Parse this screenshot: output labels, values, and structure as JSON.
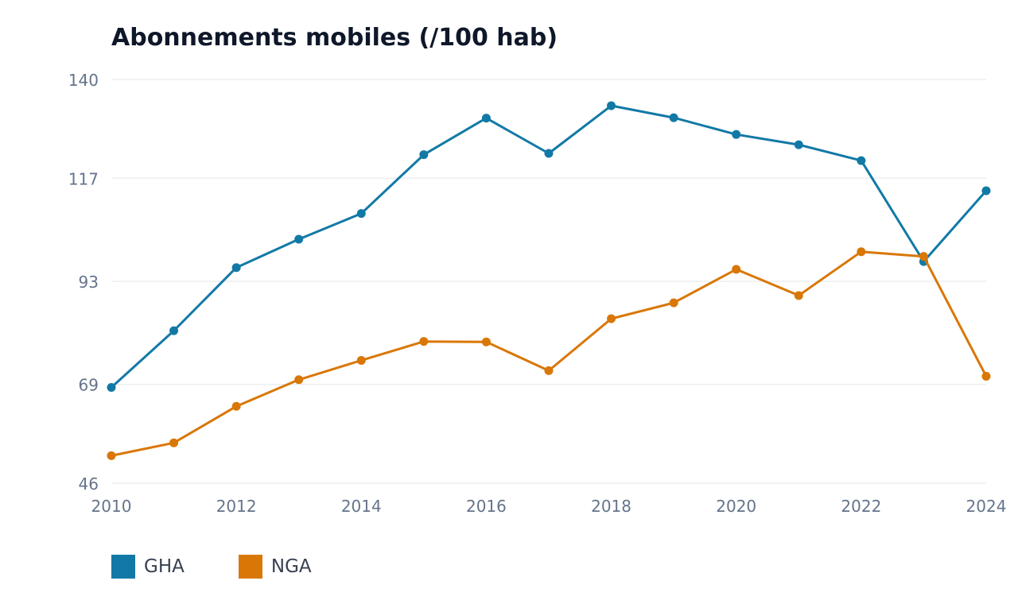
{
  "chart_data": {
    "type": "line",
    "title": "Abonnements mobiles (/100 hab)",
    "xlabel": "",
    "ylabel": "",
    "x": [
      2010,
      2011,
      2012,
      2013,
      2014,
      2015,
      2016,
      2017,
      2018,
      2019,
      2020,
      2021,
      2022,
      2023,
      2024
    ],
    "x_tick_labels": [
      "2010",
      "2012",
      "2014",
      "2016",
      "2018",
      "2020",
      "2022",
      "2024"
    ],
    "y_tick_labels": [
      "140",
      "117",
      "93",
      "69",
      "46"
    ],
    "ylim": [
      46,
      140
    ],
    "xlim": [
      2010,
      2024
    ],
    "grid": true,
    "legend_position": "bottom-left",
    "series": [
      {
        "name": "GHA",
        "color": "#1279a6",
        "values": [
          68.3,
          81.5,
          96.2,
          102.8,
          108.8,
          122.5,
          131.0,
          122.8,
          133.9,
          131.1,
          127.2,
          124.8,
          121.1,
          97.6,
          114.1
        ]
      },
      {
        "name": "NGA",
        "color": "#d97706",
        "values": [
          52.4,
          55.4,
          63.9,
          70.1,
          74.6,
          79.0,
          78.9,
          72.2,
          84.3,
          88.0,
          95.8,
          89.7,
          99.9,
          98.8,
          70.9
        ]
      }
    ]
  }
}
